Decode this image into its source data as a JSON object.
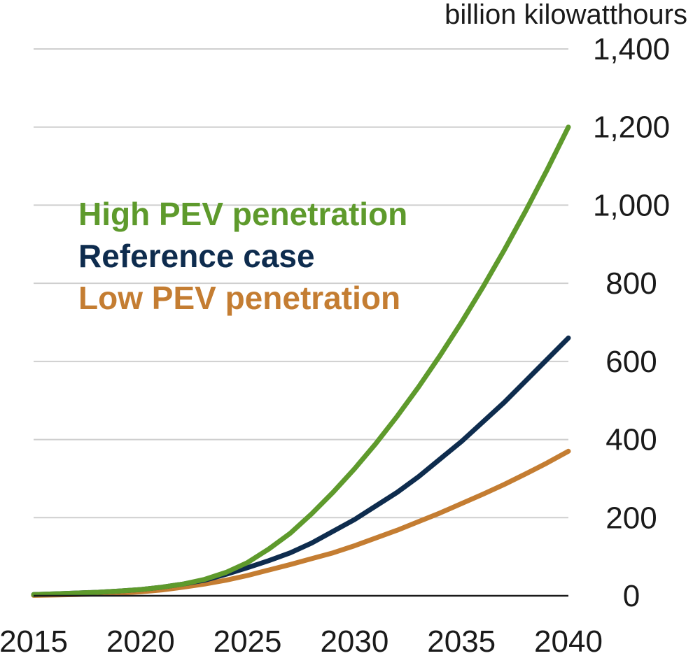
{
  "chart_data": {
    "type": "line",
    "title": "",
    "xlabel": "",
    "ylabel": "billion kilowatthours",
    "xlim": [
      2015,
      2040
    ],
    "ylim": [
      0,
      1400
    ],
    "x_ticks": [
      2015,
      2020,
      2025,
      2030,
      2035,
      2040
    ],
    "y_ticks": [
      0,
      200,
      400,
      600,
      800,
      1000,
      1200,
      1400
    ],
    "x_tick_labels": [
      "2015",
      "2020",
      "2025",
      "2030",
      "2035",
      "2040"
    ],
    "y_tick_labels": [
      "0",
      "200",
      "400",
      "600",
      "800",
      "1,000",
      "1,200",
      "1,400"
    ],
    "grid": "horizontal",
    "legend_placement": "upper-left",
    "x": [
      2015,
      2016,
      2017,
      2018,
      2019,
      2020,
      2021,
      2022,
      2023,
      2024,
      2025,
      2026,
      2027,
      2028,
      2029,
      2030,
      2031,
      2032,
      2033,
      2034,
      2035,
      2036,
      2037,
      2038,
      2039,
      2040
    ],
    "series": [
      {
        "name": "High PEV penetration",
        "color": "#5e9a2c",
        "values": [
          3,
          5,
          7,
          9,
          12,
          16,
          22,
          30,
          42,
          60,
          85,
          120,
          160,
          210,
          265,
          325,
          390,
          460,
          535,
          615,
          700,
          790,
          885,
          985,
          1090,
          1200
        ]
      },
      {
        "name": "Reference case",
        "color": "#0e2c4e",
        "values": [
          3,
          5,
          7,
          9,
          12,
          16,
          22,
          30,
          40,
          55,
          72,
          90,
          110,
          135,
          165,
          195,
          230,
          265,
          305,
          350,
          395,
          445,
          495,
          550,
          605,
          660
        ]
      },
      {
        "name": "Low PEV penetration",
        "color": "#c47d32",
        "values": [
          1,
          2,
          3,
          5,
          7,
          10,
          15,
          22,
          30,
          40,
          52,
          66,
          80,
          95,
          110,
          128,
          148,
          168,
          190,
          212,
          236,
          260,
          285,
          312,
          340,
          370
        ]
      }
    ]
  }
}
